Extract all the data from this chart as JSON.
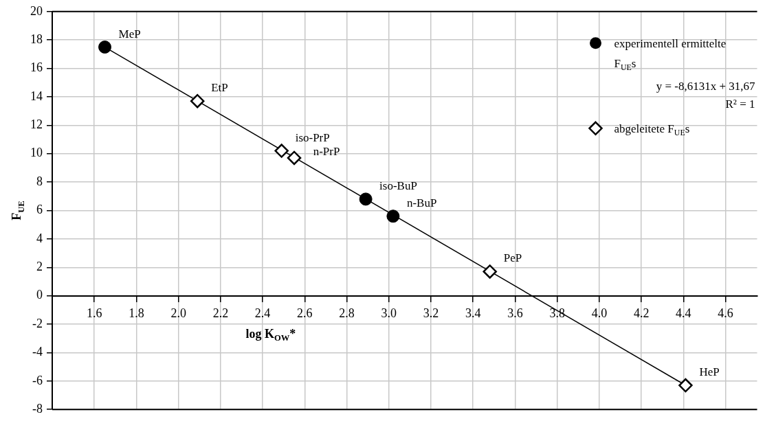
{
  "chart_data": {
    "type": "scatter",
    "xlabel": "log K$_{OW}$*",
    "ylabel": "F$_{UE}$",
    "xlim": [
      1.4,
      4.75
    ],
    "xticks": [
      1.6,
      1.8,
      {
        "value": 2,
        "label": "2.0"
      },
      2.2,
      2.4,
      2.6,
      2.8,
      {
        "value": 3,
        "label": "3.0"
      },
      3.2,
      3.4,
      3.6,
      3.8,
      {
        "value": 4,
        "label": "4.0"
      },
      4.2,
      4.4,
      4.6
    ],
    "ylim": [
      -8,
      20
    ],
    "yticks": [
      -8,
      -6,
      -4,
      -2,
      0,
      2,
      4,
      6,
      8,
      10,
      12,
      14,
      16,
      18,
      20
    ],
    "grid": true,
    "legend": "top right",
    "annotations": [
      "y = -8,6131x + 31,67",
      "R² = 1",
      {
        "text": "MeP",
        "x": 1.65,
        "y": 17.5
      },
      {
        "text": "EtP",
        "x": 2.09,
        "y": 13.7
      },
      {
        "text": "iso-PrP",
        "x": 2.49,
        "y": 10.2
      },
      {
        "text": "n-PrP",
        "x": 2.55,
        "y": 9.7
      },
      {
        "text": "iso-BuP",
        "x": 2.89,
        "y": 6.8
      },
      {
        "text": "n-BuP",
        "x": 3.02,
        "y": 5.6
      },
      {
        "text": "PeP",
        "x": 3.48,
        "y": 1.7
      },
      {
        "text": "HeP",
        "x": 4.41,
        "y": -6.3
      }
    ],
    "series": [
      {
        "name": "experimentell ermittelte F$_{UE}$s",
        "color": "#000000",
        "marker": "circle",
        "x": [
          1.65,
          2.89,
          3.02
        ],
        "values": [
          17.5,
          6.8,
          5.6
        ]
      },
      {
        "name": "abgeleitete F$_{UE}$s",
        "color": "#000000",
        "marker": "diamond",
        "x": [
          2.09,
          2.49,
          2.55,
          3.48,
          4.41
        ],
        "values": [
          13.7,
          10.2,
          9.7,
          1.7,
          -6.3
        ]
      },
      {
        "type": "line",
        "color": "#000000",
        "marker": "none",
        "x": [
          1.65,
          4.41
        ],
        "values": [
          17.5,
          -6.3
        ]
      }
    ]
  }
}
